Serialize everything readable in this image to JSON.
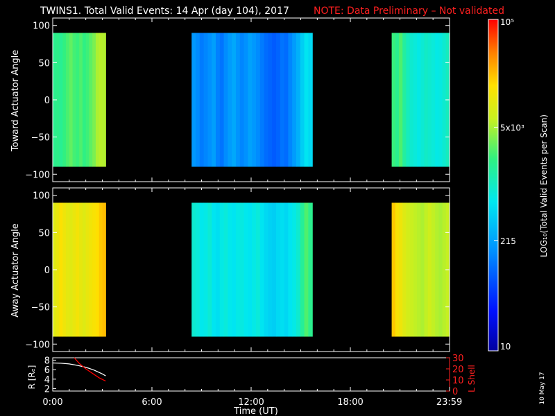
{
  "header": {
    "title": "TWINS1. Total Valid Events: 14 Apr (day 104), 2017",
    "note": "NOTE: Data Preliminary – Not validated"
  },
  "colors": {
    "background": "#000000",
    "axes": "#ffffff",
    "note_text": "#ff2020",
    "r_line": "#ffffff",
    "lshell_line": "#ff0000"
  },
  "colorbar": {
    "label": "LOG₁₀(Total Valid Events per Scan)",
    "tick_labels": [
      "10",
      "215",
      "5x10³",
      "10⁵"
    ],
    "tick_values": [
      10,
      215,
      5000,
      100000
    ],
    "range": [
      10,
      100000
    ],
    "scale": "log",
    "colormap": "rainbow (blue-cyan-green-yellow-red)"
  },
  "chart_data": [
    {
      "type": "heatmap",
      "ylabel": "Toward Actuator Angle",
      "xlim": [
        0,
        24
      ],
      "ylim": [
        -110,
        110
      ],
      "yticks": [
        -100,
        -50,
        0,
        50,
        100
      ],
      "y_tick_labels": [
        "−100",
        "−50",
        "0",
        "50",
        "100"
      ],
      "y_extent": [
        -90,
        90
      ],
      "segments": [
        {
          "start": 0.0,
          "end": 3.2,
          "profile": [
            1800,
            1900,
            1700,
            2100,
            2500,
            3000,
            2400,
            2200,
            2600,
            2000,
            2300,
            2900,
            3600,
            5200,
            5600,
            5400
          ]
        },
        {
          "start": 8.4,
          "end": 15.7,
          "profile": [
            180,
            150,
            120,
            140,
            160,
            200,
            130,
            110,
            150,
            190,
            230,
            170,
            140,
            160,
            210,
            180,
            150,
            120,
            100,
            90,
            80,
            90,
            110,
            100,
            140,
            190,
            260,
            420,
            600,
            500
          ]
        },
        {
          "start": 20.5,
          "end": 24.0,
          "profile": [
            2200,
            1800,
            2600,
            1500,
            1100,
            900,
            800,
            700,
            850,
            1000,
            900,
            800,
            700,
            750,
            900,
            1100
          ]
        }
      ]
    },
    {
      "type": "heatmap",
      "ylabel": "Away Actuator Angle",
      "xlim": [
        0,
        24
      ],
      "ylim": [
        -110,
        110
      ],
      "yticks": [
        -100,
        -50,
        0,
        50,
        100
      ],
      "y_tick_labels": [
        "−100",
        "−50",
        "0",
        "50",
        "100"
      ],
      "y_extent": [
        -90,
        90
      ],
      "segments": [
        {
          "start": 0.0,
          "end": 3.2,
          "profile": [
            9000,
            11000,
            15000,
            12000,
            10000,
            9500,
            11000,
            13000,
            10500,
            9000,
            11000,
            12500,
            14000,
            16000,
            20000,
            22000
          ]
        },
        {
          "start": 8.4,
          "end": 15.7,
          "profile": [
            900,
            800,
            650,
            700,
            850,
            600,
            550,
            700,
            800,
            650,
            600,
            700,
            750,
            650,
            600,
            700,
            800,
            600,
            500,
            450,
            420,
            500,
            550,
            480,
            600,
            700,
            900,
            1600,
            2600,
            1800
          ]
        },
        {
          "start": 20.5,
          "end": 24.0,
          "profile": [
            20000,
            14000,
            12000,
            9000,
            7500,
            6500,
            6000,
            5600,
            5200,
            6000,
            7000,
            6000,
            5400,
            5000,
            5600,
            6200
          ]
        }
      ]
    },
    {
      "type": "line",
      "xlabel": "Time (UT)",
      "ylabel": "R [Rₑ]",
      "y2label": "L Shell",
      "xlim": [
        0,
        24
      ],
      "xticks": [
        0,
        6,
        12,
        18,
        23.983
      ],
      "x_tick_labels": [
        "0:00",
        "6:00",
        "12:00",
        "18:00",
        "23:59"
      ],
      "ylim": [
        1.5,
        8.5
      ],
      "yticks": [
        2,
        4,
        6,
        8
      ],
      "y_tick_labels": [
        "2",
        "4",
        "6",
        "8"
      ],
      "y2lim": [
        0,
        30
      ],
      "y2ticks": [
        0,
        10,
        20,
        30
      ],
      "y2_tick_labels": [
        "0",
        "10",
        "20",
        "30"
      ],
      "series": [
        {
          "axis": "left",
          "color": "#ffffff",
          "x": [
            0.0,
            0.5,
            1.0,
            1.5,
            2.0,
            2.5,
            3.0,
            3.2
          ],
          "y": [
            7.4,
            7.35,
            7.2,
            6.9,
            6.5,
            5.9,
            5.1,
            4.7
          ]
        },
        {
          "axis": "right",
          "color": "#ff0000",
          "x": [
            1.3,
            1.6,
            2.0,
            2.4,
            2.8,
            3.2
          ],
          "y": [
            30,
            25,
            20,
            16,
            12,
            9
          ]
        }
      ]
    }
  ],
  "footer": {
    "date_stamp": "10 May 17"
  }
}
